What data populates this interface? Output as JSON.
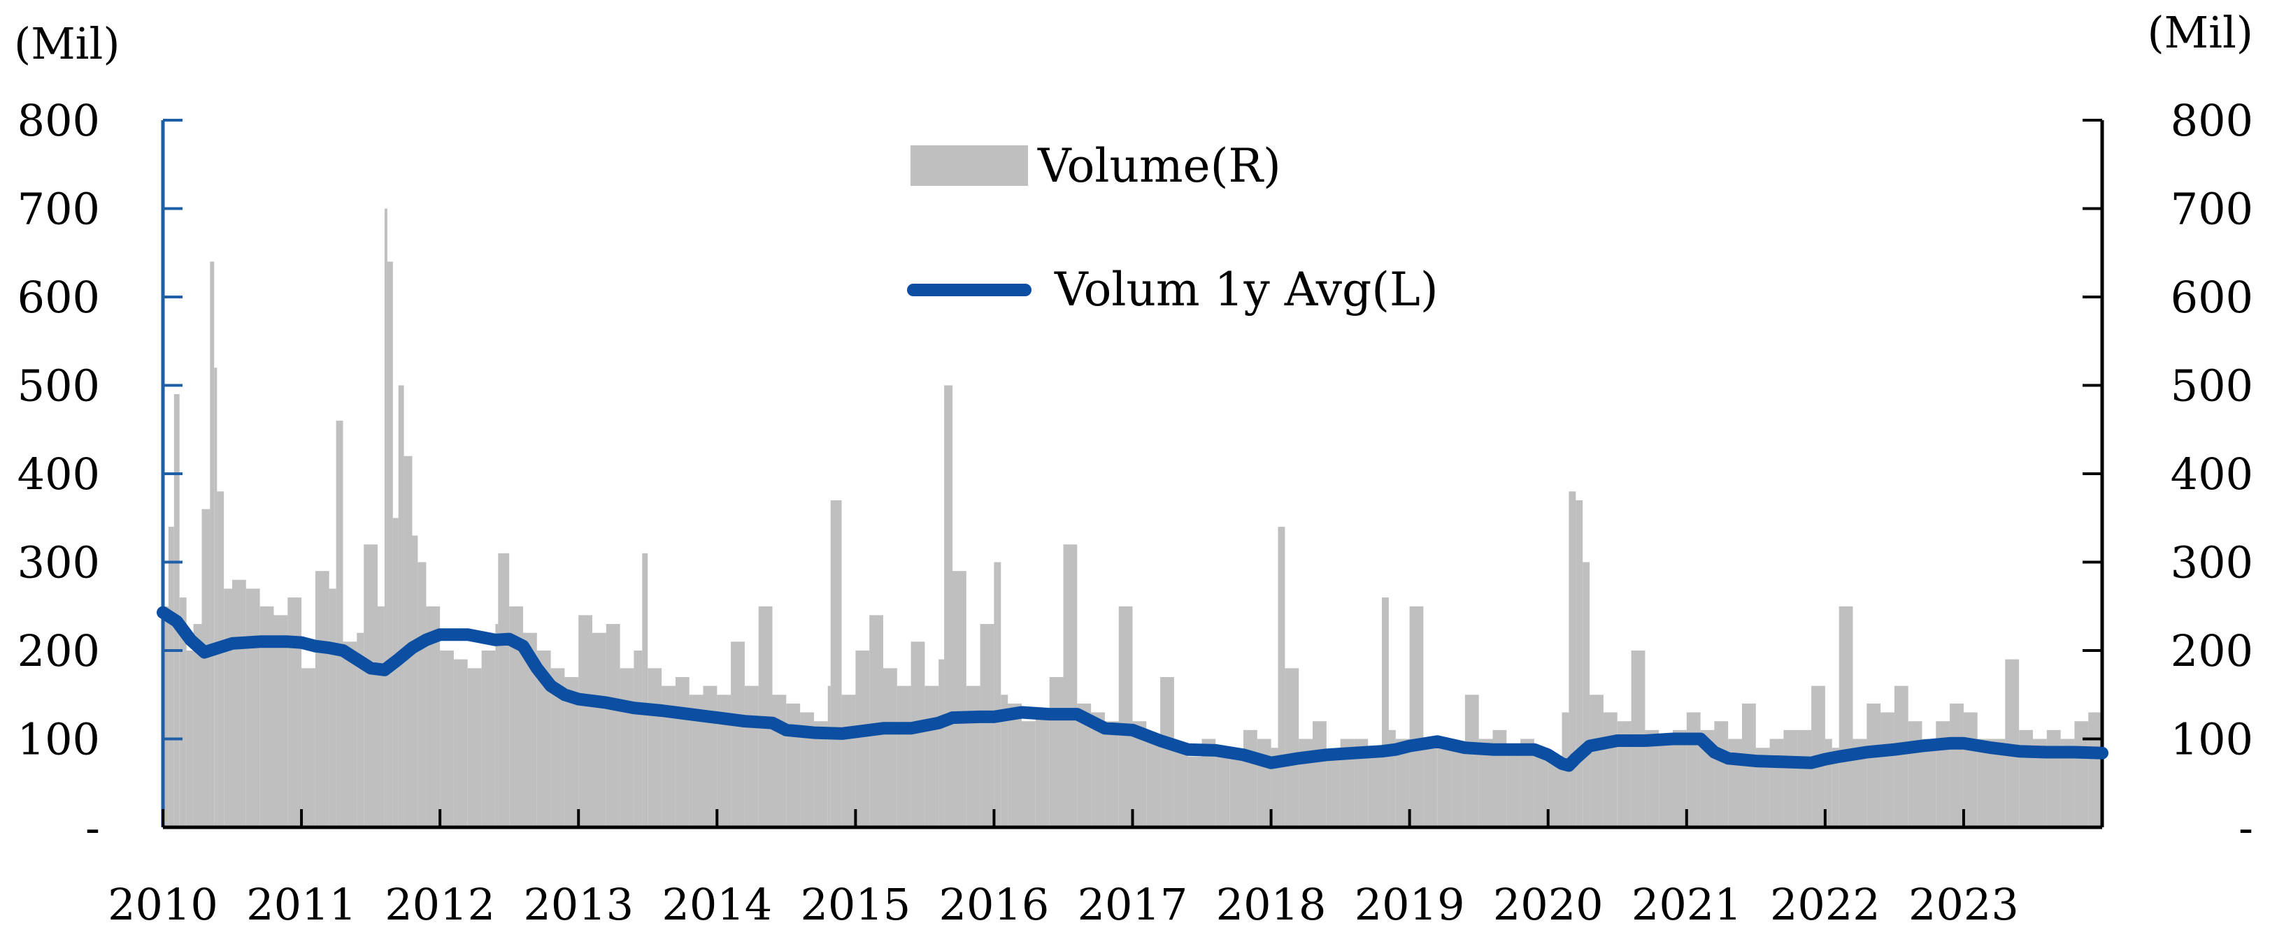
{
  "chart_data": {
    "type": "bar+line",
    "units": {
      "left": "(Mil)",
      "right": "(Mil)"
    },
    "x_ticks": [
      "2010",
      "2011",
      "2012",
      "2013",
      "2014",
      "2015",
      "2016",
      "2017",
      "2018",
      "2019",
      "2020",
      "2021",
      "2022",
      "2023"
    ],
    "x_range": [
      2010.0,
      2024.0
    ],
    "y_left": {
      "range": [
        0,
        800
      ],
      "ticks": [
        "-",
        "100",
        "200",
        "300",
        "400",
        "500",
        "600",
        "700",
        "800"
      ]
    },
    "y_right": {
      "range": [
        0,
        800
      ],
      "ticks": [
        "-",
        "100",
        "200",
        "300",
        "400",
        "500",
        "600",
        "700",
        "800"
      ]
    },
    "legend": {
      "placement": "top-center",
      "items": [
        "Volume(R)",
        "Volum 1y Avg(L)"
      ]
    },
    "colors": {
      "volume": "#bfbfbf",
      "avg": "#0b4ea2",
      "axis_left": "#1f5fa8",
      "axis_right": "#000000"
    },
    "series": [
      {
        "name": "Volume(R)",
        "type": "bar",
        "axis": "right",
        "x": [
          2010.0,
          2010.04,
          2010.08,
          2010.12,
          2010.17,
          2010.22,
          2010.28,
          2010.34,
          2010.37,
          2010.39,
          2010.44,
          2010.5,
          2010.6,
          2010.7,
          2010.8,
          2010.9,
          2011.0,
          2011.1,
          2011.2,
          2011.25,
          2011.3,
          2011.4,
          2011.45,
          2011.55,
          2011.6,
          2011.62,
          2011.66,
          2011.7,
          2011.74,
          2011.8,
          2011.84,
          2011.9,
          2012.0,
          2012.1,
          2012.2,
          2012.3,
          2012.4,
          2012.42,
          2012.5,
          2012.6,
          2012.7,
          2012.8,
          2012.9,
          2013.0,
          2013.1,
          2013.2,
          2013.3,
          2013.4,
          2013.46,
          2013.5,
          2013.6,
          2013.7,
          2013.8,
          2013.9,
          2014.0,
          2014.1,
          2014.2,
          2014.3,
          2014.4,
          2014.5,
          2014.6,
          2014.7,
          2014.8,
          2014.82,
          2014.9,
          2015.0,
          2015.1,
          2015.2,
          2015.3,
          2015.4,
          2015.5,
          2015.6,
          2015.64,
          2015.7,
          2015.8,
          2015.9,
          2016.0,
          2016.05,
          2016.1,
          2016.2,
          2016.3,
          2016.4,
          2016.5,
          2016.6,
          2016.7,
          2016.8,
          2016.9,
          2017.0,
          2017.1,
          2017.2,
          2017.3,
          2017.4,
          2017.5,
          2017.6,
          2017.7,
          2017.8,
          2017.9,
          2018.0,
          2018.05,
          2018.1,
          2018.2,
          2018.3,
          2018.4,
          2018.5,
          2018.6,
          2018.7,
          2018.8,
          2018.85,
          2018.9,
          2019.0,
          2019.1,
          2019.2,
          2019.3,
          2019.4,
          2019.5,
          2019.6,
          2019.7,
          2019.8,
          2019.9,
          2020.0,
          2020.1,
          2020.15,
          2020.2,
          2020.25,
          2020.3,
          2020.4,
          2020.5,
          2020.6,
          2020.7,
          2020.8,
          2020.9,
          2021.0,
          2021.1,
          2021.2,
          2021.3,
          2021.4,
          2021.5,
          2021.6,
          2021.7,
          2021.8,
          2021.9,
          2022.0,
          2022.05,
          2022.1,
          2022.2,
          2022.3,
          2022.4,
          2022.5,
          2022.6,
          2022.7,
          2022.8,
          2022.9,
          2023.0,
          2023.1,
          2023.2,
          2023.3,
          2023.4,
          2023.5,
          2023.6,
          2023.7,
          2023.8,
          2023.9,
          2023.99
        ],
        "values": [
          250,
          340,
          490,
          260,
          200,
          230,
          360,
          640,
          520,
          380,
          270,
          280,
          270,
          250,
          240,
          260,
          180,
          290,
          270,
          460,
          210,
          220,
          320,
          250,
          700,
          640,
          350,
          500,
          420,
          330,
          300,
          250,
          200,
          190,
          180,
          200,
          230,
          310,
          250,
          220,
          200,
          180,
          170,
          240,
          220,
          230,
          180,
          200,
          310,
          180,
          160,
          170,
          150,
          160,
          150,
          210,
          160,
          250,
          150,
          140,
          130,
          120,
          160,
          370,
          150,
          200,
          240,
          180,
          160,
          210,
          160,
          190,
          500,
          290,
          160,
          230,
          300,
          150,
          140,
          120,
          130,
          170,
          320,
          140,
          130,
          120,
          250,
          120,
          100,
          170,
          90,
          80,
          100,
          90,
          80,
          110,
          100,
          90,
          340,
          180,
          100,
          120,
          80,
          100,
          100,
          90,
          260,
          110,
          100,
          250,
          100,
          90,
          90,
          150,
          100,
          110,
          90,
          100,
          90,
          80,
          130,
          380,
          370,
          300,
          150,
          130,
          120,
          200,
          110,
          100,
          110,
          130,
          110,
          120,
          100,
          140,
          90,
          100,
          110,
          110,
          160,
          100,
          90,
          250,
          100,
          140,
          130,
          160,
          120,
          100,
          120,
          140,
          130,
          100,
          100,
          190,
          110,
          100,
          110,
          100,
          120,
          130,
          140
        ]
      },
      {
        "name": "Volum 1y Avg(L)",
        "type": "line",
        "axis": "left",
        "x": [
          2010.0,
          2010.1,
          2010.2,
          2010.3,
          2010.4,
          2010.5,
          2010.7,
          2010.9,
          2011.0,
          2011.1,
          2011.2,
          2011.3,
          2011.4,
          2011.5,
          2011.6,
          2011.7,
          2011.8,
          2011.9,
          2012.0,
          2012.2,
          2012.4,
          2012.5,
          2012.6,
          2012.7,
          2012.8,
          2012.9,
          2013.0,
          2013.2,
          2013.4,
          2013.6,
          2013.8,
          2014.0,
          2014.2,
          2014.4,
          2014.5,
          2014.7,
          2014.9,
          2015.0,
          2015.2,
          2015.4,
          2015.6,
          2015.7,
          2015.9,
          2016.0,
          2016.2,
          2016.4,
          2016.6,
          2016.8,
          2017.0,
          2017.2,
          2017.4,
          2017.6,
          2017.8,
          2018.0,
          2018.2,
          2018.4,
          2018.6,
          2018.8,
          2018.9,
          2019.0,
          2019.2,
          2019.4,
          2019.6,
          2019.8,
          2019.9,
          2020.0,
          2020.1,
          2020.15,
          2020.2,
          2020.3,
          2020.5,
          2020.7,
          2020.9,
          2021.0,
          2021.1,
          2021.2,
          2021.3,
          2021.5,
          2021.7,
          2021.9,
          2022.0,
          2022.1,
          2022.3,
          2022.5,
          2022.7,
          2022.9,
          2023.0,
          2023.2,
          2023.4,
          2023.6,
          2023.8,
          2024.0
        ],
        "values": [
          243,
          233,
          212,
          198,
          203,
          208,
          210,
          210,
          209,
          205,
          203,
          200,
          190,
          180,
          178,
          190,
          203,
          212,
          218,
          218,
          212,
          213,
          205,
          180,
          160,
          150,
          145,
          141,
          135,
          132,
          128,
          124,
          120,
          118,
          110,
          107,
          106,
          108,
          112,
          112,
          118,
          124,
          125,
          125,
          130,
          128,
          128,
          112,
          110,
          98,
          88,
          87,
          82,
          73,
          78,
          82,
          84,
          86,
          88,
          92,
          97,
          90,
          88,
          88,
          88,
          82,
          72,
          70,
          78,
          92,
          98,
          98,
          100,
          100,
          100,
          85,
          78,
          75,
          74,
          73,
          77,
          80,
          85,
          88,
          92,
          95,
          95,
          90,
          86,
          85,
          85,
          84
        ]
      }
    ]
  }
}
